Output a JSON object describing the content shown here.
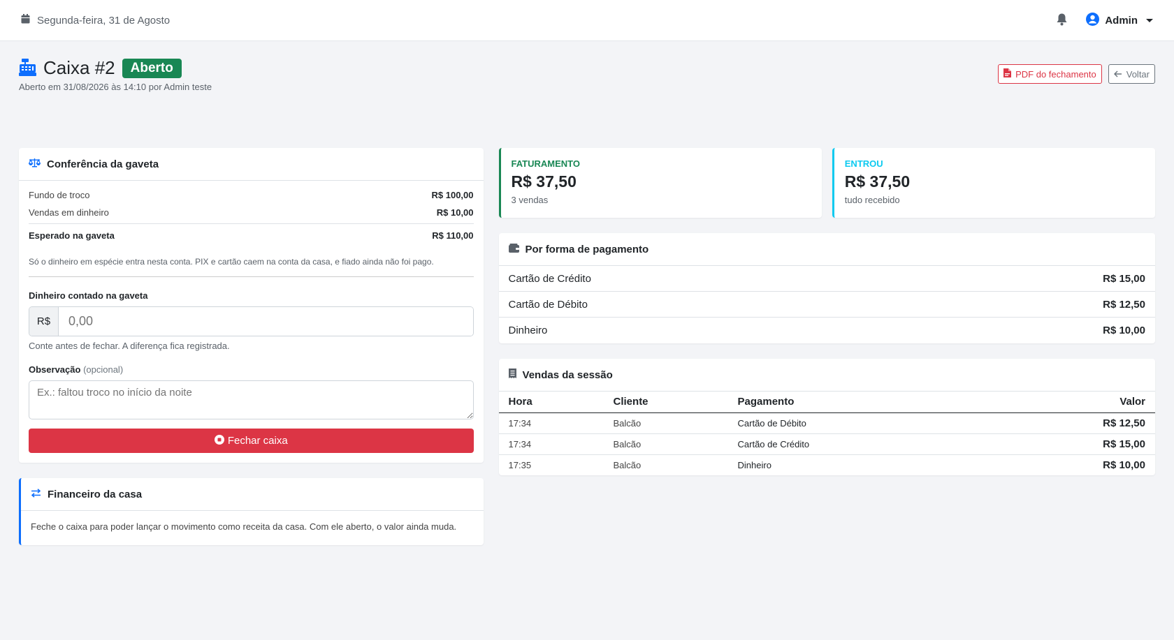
{
  "topbar": {
    "date": "Segunda-feira, 31 de Agosto",
    "user": "Admin"
  },
  "header": {
    "title": "Caixa #2",
    "status": "Aberto",
    "subtitle": "Aberto em 31/08/2026 às 14:10 por Admin teste",
    "pdf_button": "PDF do fechamento",
    "back_button": "Voltar"
  },
  "conferencia": {
    "title": "Conferência da gaveta",
    "rows": [
      {
        "label": "Fundo de troco",
        "value": "R$ 100,00"
      },
      {
        "label": "Vendas em dinheiro",
        "value": "R$ 10,00"
      }
    ],
    "total_label": "Esperado na gaveta",
    "total_value": "R$ 110,00",
    "note": "Só o dinheiro em espécie entra nesta conta. PIX e cartão caem na conta da casa, e fiado ainda não foi pago.",
    "counted_label": "Dinheiro contado na gaveta",
    "currency_prefix": "R$",
    "counted_placeholder": "0,00",
    "counted_help": "Conte antes de fechar. A diferença fica registrada.",
    "obs_label": "Observação",
    "obs_optional": "(opcional)",
    "obs_placeholder": "Ex.: faltou troco no início da noite",
    "close_button": "Fechar caixa"
  },
  "financeiro": {
    "title": "Financeiro da casa",
    "text": "Feche o caixa para poder lançar o movimento como receita da casa. Com ele aberto, o valor ainda muda."
  },
  "stats": [
    {
      "label": "FATURAMENTO",
      "value": "R$ 37,50",
      "sub": "3 vendas",
      "color": "#198754"
    },
    {
      "label": "ENTROU",
      "value": "R$ 37,50",
      "sub": "tudo recebido",
      "color": "#0dcaf0"
    }
  ],
  "pagamentos": {
    "title": "Por forma de pagamento",
    "rows": [
      {
        "label": "Cartão de Crédito",
        "value": "R$ 15,00"
      },
      {
        "label": "Cartão de Débito",
        "value": "R$ 12,50"
      },
      {
        "label": "Dinheiro",
        "value": "R$ 10,00"
      }
    ]
  },
  "vendas": {
    "title": "Vendas da sessão",
    "columns": [
      "Hora",
      "Cliente",
      "Pagamento",
      "Valor"
    ],
    "rows": [
      {
        "hora": "17:34",
        "cliente": "Balcão",
        "pagamento": "Cartão de Débito",
        "valor": "R$ 12,50"
      },
      {
        "hora": "17:34",
        "cliente": "Balcão",
        "pagamento": "Cartão de Crédito",
        "valor": "R$ 15,00"
      },
      {
        "hora": "17:35",
        "cliente": "Balcão",
        "pagamento": "Dinheiro",
        "valor": "R$ 10,00"
      }
    ]
  },
  "colors": {
    "primary": "#0d6efd",
    "success": "#198754",
    "danger": "#dc3545",
    "info": "#0dcaf0"
  }
}
